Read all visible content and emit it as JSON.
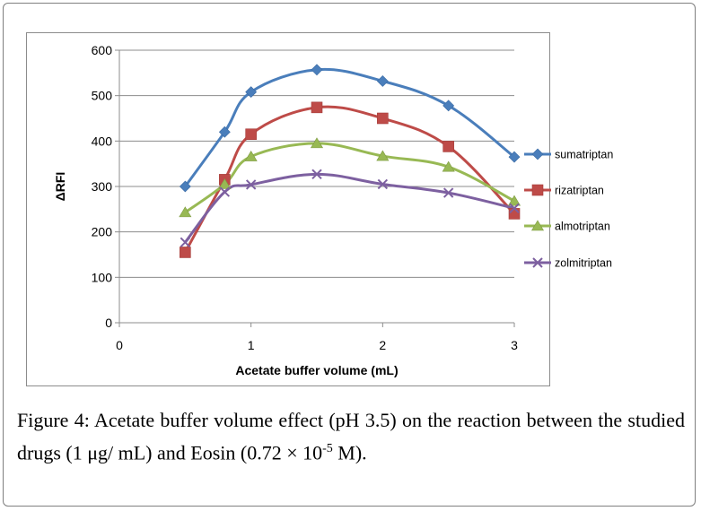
{
  "chart_data": {
    "type": "line",
    "title": "",
    "xlabel": "Acetate buffer volume (mL)",
    "ylabel": "ΔRFI",
    "xlim": [
      0,
      3
    ],
    "ylim": [
      0,
      600
    ],
    "xticks": [
      0,
      1,
      2,
      3
    ],
    "yticks": [
      0,
      100,
      200,
      300,
      400,
      500,
      600
    ],
    "xtick_labels": [
      "0",
      "1",
      "2",
      "3"
    ],
    "ytick_labels": [
      "0",
      "100",
      "200",
      "300",
      "400",
      "500",
      "600"
    ],
    "grid": "horizontal",
    "legend_position": "right",
    "x": [
      0.5,
      0.8,
      1.0,
      1.5,
      2.0,
      2.5,
      3.0
    ],
    "series": [
      {
        "name": "sumatriptan",
        "marker": "diamond",
        "color": "#4a7ebb",
        "values": [
          300,
          420,
          508,
          557,
          532,
          478,
          365
        ]
      },
      {
        "name": "rizatriptan",
        "marker": "square",
        "color": "#be4b48",
        "values": [
          155,
          315,
          415,
          474,
          450,
          388,
          240
        ]
      },
      {
        "name": "almotriptan",
        "marker": "triangle",
        "color": "#98b954",
        "values": [
          243,
          305,
          366,
          395,
          367,
          343,
          268
        ]
      },
      {
        "name": "zolmitriptan",
        "marker": "x",
        "color": "#7d60a0",
        "values": [
          177,
          288,
          304,
          327,
          305,
          286,
          252
        ]
      }
    ]
  },
  "caption": {
    "label": "Figure 4:",
    "text_before_sup": " Acetate buffer volume effect (pH 3.5) on the reaction between the studied drugs (1 μg/ mL) and Eosin (0.72 × 10",
    "sup": "-5",
    "text_after_sup": " M)."
  }
}
